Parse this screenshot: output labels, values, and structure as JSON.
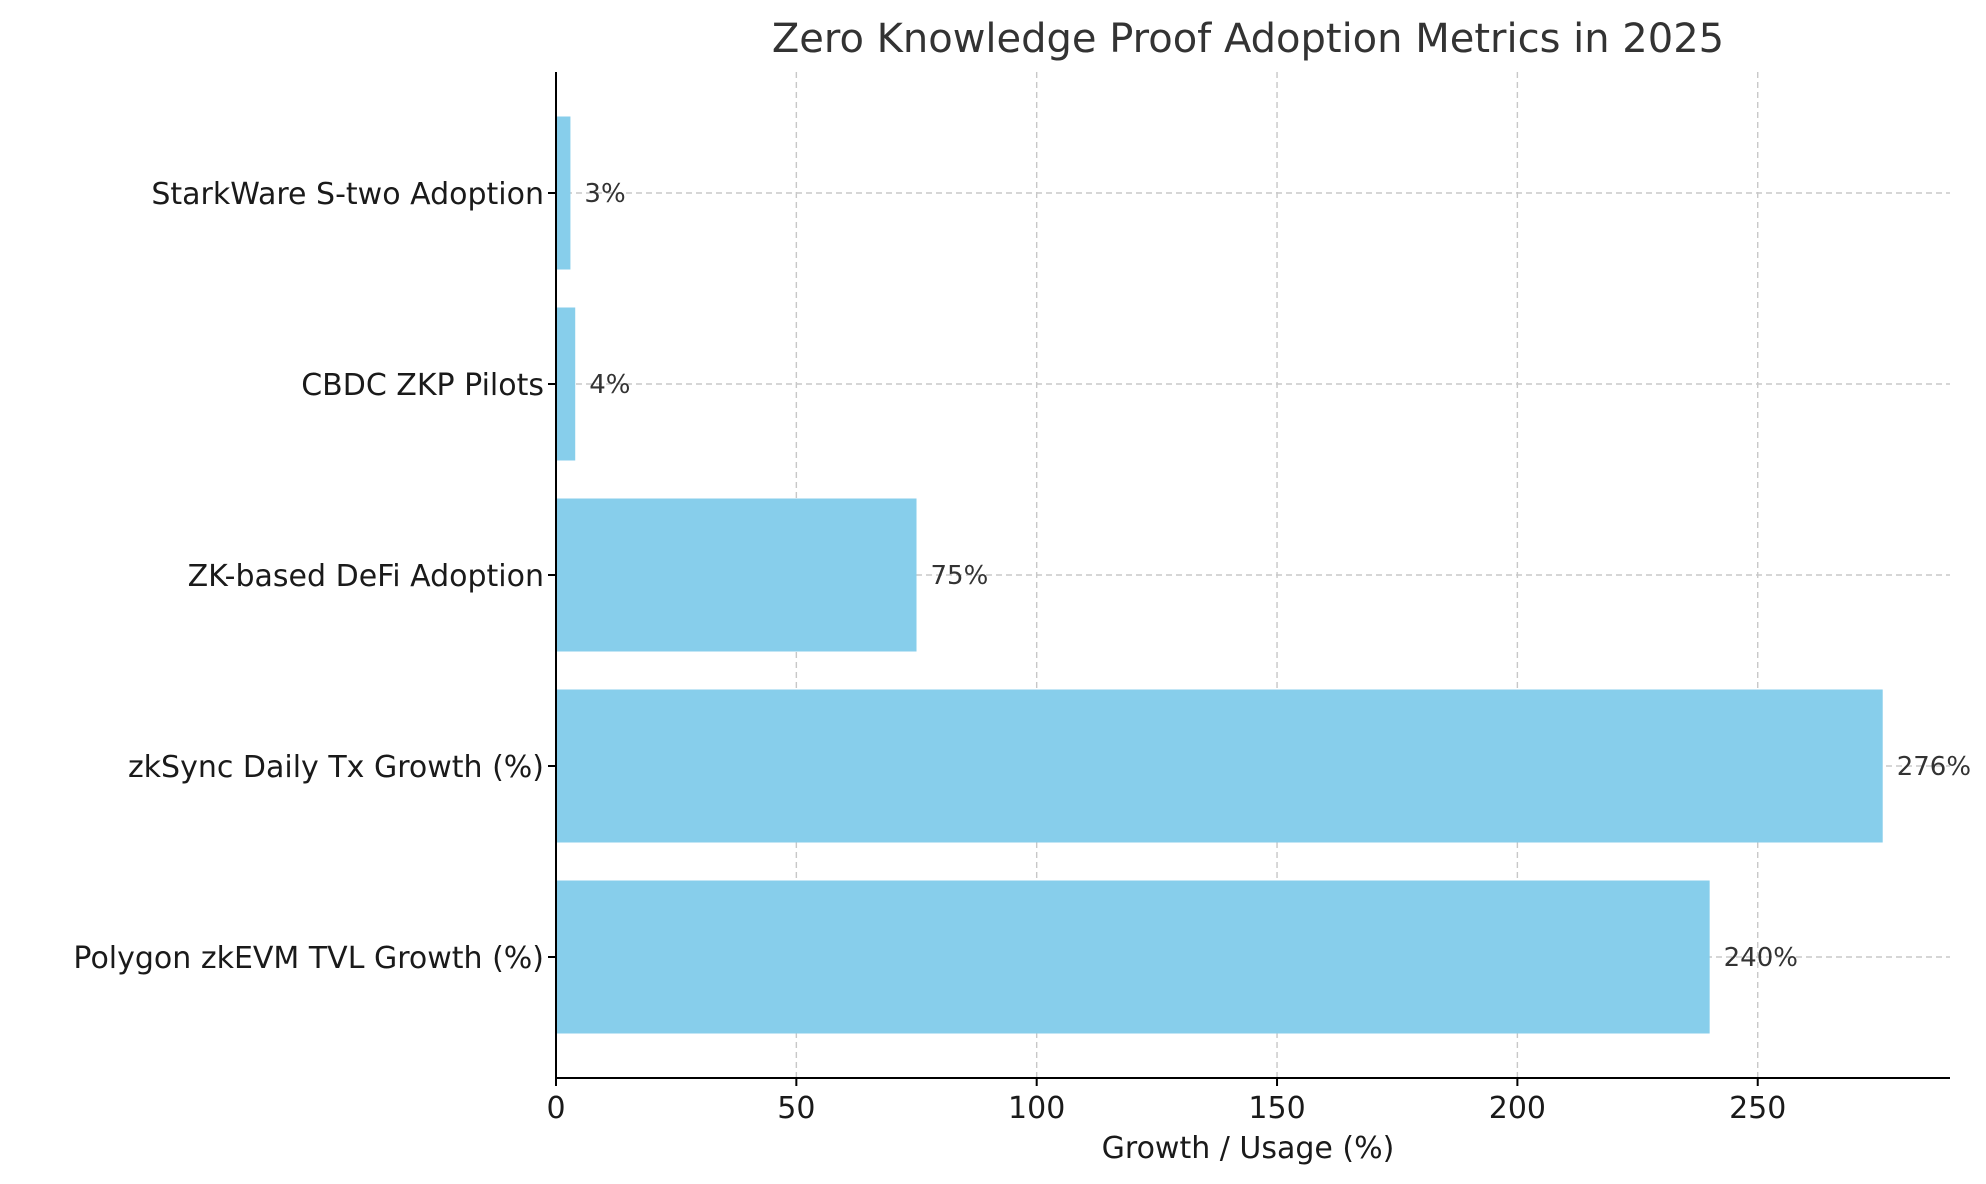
{
  "chart_data": {
    "type": "bar",
    "orientation": "horizontal",
    "title": "Zero Knowledge Proof Adoption Metrics in 2025",
    "xlabel": "Growth / Usage (%)",
    "ylabel": "",
    "categories": [
      "Polygon zkEVM TVL Growth (%)",
      "zkSync Daily Tx Growth (%)",
      "ZK-based DeFi Adoption",
      "CBDC ZKP Pilots",
      "StarkWare S-two Adoption"
    ],
    "values": [
      240,
      276,
      75,
      4,
      3
    ],
    "data_labels": [
      "240%",
      "276%",
      "75%",
      "4%",
      "3%"
    ],
    "xlim": [
      0,
      290
    ],
    "xticks": [
      0,
      50,
      100,
      150,
      200,
      250
    ],
    "xtick_labels": [
      "0",
      "50",
      "100",
      "150",
      "200",
      "250"
    ],
    "grid": true,
    "legend": null,
    "colors": {
      "bar": "#87ceeb",
      "grid": "#c8c8c8",
      "axis": "#000000",
      "title_text": "#333333",
      "label_text": "#1a1a1a",
      "data_label_text": "#333333"
    }
  }
}
